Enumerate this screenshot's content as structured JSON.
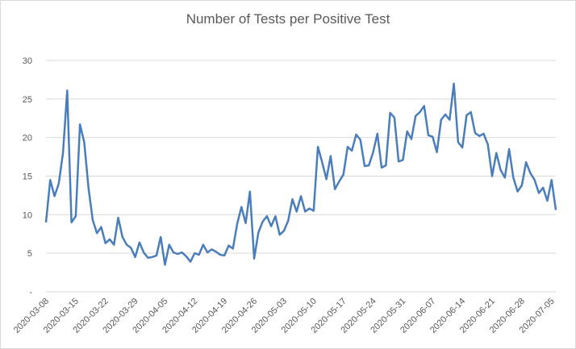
{
  "chart_data": {
    "type": "line",
    "title": "Number of Tests per Positive Test",
    "xlabel": "",
    "ylabel": "",
    "ylim": [
      0,
      30
    ],
    "y_ticks": [
      "-",
      "5",
      "10",
      "15",
      "20",
      "25",
      "30"
    ],
    "grid": "horizontal",
    "legend": "none",
    "line_color": "#4a7ebb",
    "x_tick_labels": [
      "2020-03-08",
      "2020-03-15",
      "2020-03-22",
      "2020-03-29",
      "2020-04-05",
      "2020-04-12",
      "2020-04-19",
      "2020-04-26",
      "2020-05-03",
      "2020-05-10",
      "2020-05-17",
      "2020-05-24",
      "2020-05-31",
      "2020-06-07",
      "2020-06-14",
      "2020-06-21",
      "2020-06-28",
      "2020-07-05"
    ],
    "x_start": "2020-03-08",
    "x_end": "2020-07-06",
    "values": [
      9.0,
      14.5,
      12.4,
      14.0,
      18.0,
      26.1,
      9.0,
      9.8,
      21.7,
      19.4,
      13.5,
      9.3,
      7.6,
      8.4,
      6.3,
      6.8,
      6.1,
      9.6,
      7.1,
      6.1,
      5.7,
      4.5,
      6.4,
      5.1,
      4.4,
      4.5,
      4.7,
      7.1,
      3.5,
      6.1,
      5.1,
      4.9,
      5.1,
      4.6,
      3.9,
      5.0,
      4.8,
      6.1,
      5.1,
      5.5,
      5.2,
      4.8,
      4.7,
      6.0,
      5.6,
      8.8,
      11.0,
      8.9,
      13.0,
      4.3,
      7.7,
      9.1,
      9.8,
      8.5,
      9.8,
      7.4,
      7.9,
      9.2,
      12.0,
      10.4,
      12.4,
      10.4,
      10.8,
      10.5,
      18.8,
      16.8,
      14.6,
      17.6,
      13.3,
      14.3,
      15.2,
      18.8,
      18.3,
      20.4,
      19.7,
      16.3,
      16.4,
      18.1,
      20.5,
      16.1,
      16.4,
      23.2,
      22.6,
      16.9,
      17.1,
      20.8,
      19.8,
      22.8,
      23.3,
      24.1,
      20.3,
      20.1,
      18.1,
      22.3,
      23.0,
      22.3,
      27.0,
      19.4,
      18.7,
      22.9,
      23.3,
      20.6,
      20.2,
      20.5,
      19.1,
      15.0,
      18.0,
      15.8,
      14.8,
      18.5,
      14.8,
      13.0,
      13.8,
      16.8,
      15.4,
      14.5,
      12.8,
      13.5,
      11.8,
      14.5,
      10.6
    ]
  }
}
